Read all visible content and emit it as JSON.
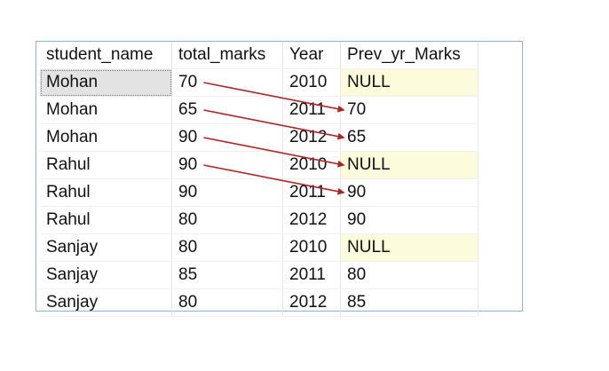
{
  "results_grid": {
    "columns": [
      "student_name",
      "total_marks",
      "Year",
      "Prev_yr_Marks"
    ],
    "rows": [
      [
        "Mohan",
        "70",
        "2010",
        "NULL"
      ],
      [
        "Mohan",
        "65",
        "2011",
        "70"
      ],
      [
        "Mohan",
        "90",
        "2012",
        "65"
      ],
      [
        "Rahul",
        "90",
        "2010",
        "NULL"
      ],
      [
        "Rahul",
        "90",
        "2011",
        "90"
      ],
      [
        "Rahul",
        "80",
        "2012",
        "90"
      ],
      [
        "Sanjay",
        "80",
        "2010",
        "NULL"
      ],
      [
        "Sanjay",
        "85",
        "2011",
        "80"
      ],
      [
        "Sanjay",
        "80",
        "2012",
        "85"
      ]
    ],
    "selected_cell": {
      "row": 0,
      "col": 0
    }
  },
  "annotations": {
    "arrow_color": "#b22222",
    "arrows": [
      {
        "from_row": 0,
        "to_row": 1
      },
      {
        "from_row": 1,
        "to_row": 2
      },
      {
        "from_row": 2,
        "to_row": 3
      },
      {
        "from_row": 3,
        "to_row": 4
      }
    ]
  },
  "colors": {
    "null_highlight": "#fcfcdc",
    "selection": "#e3e3e3",
    "frame_border": "#8fb2d6"
  }
}
